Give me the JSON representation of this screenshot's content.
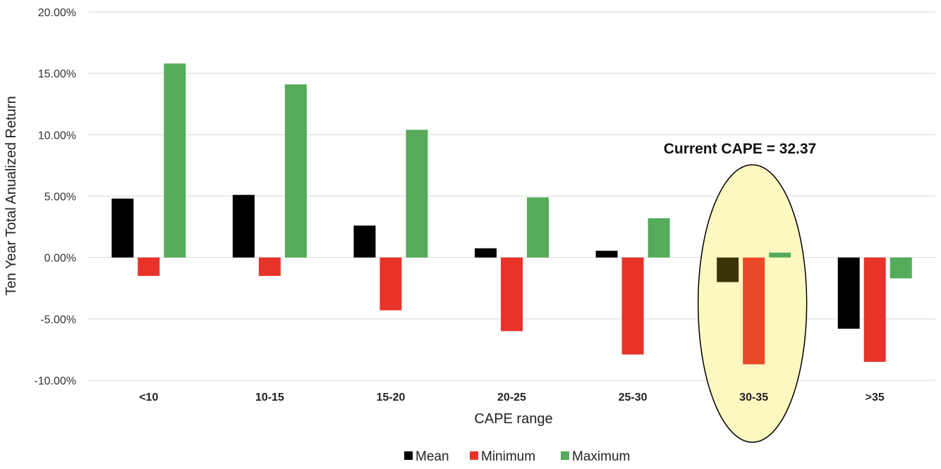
{
  "chart_data": {
    "type": "bar",
    "categories": [
      "<10",
      "10-15",
      "15-20",
      "20-25",
      "25-30",
      "30-35",
      ">35"
    ],
    "series": [
      {
        "name": "Mean",
        "color": "#000000",
        "values": [
          0.048,
          0.051,
          0.026,
          0.0075,
          0.0055,
          -0.02,
          -0.058
        ]
      },
      {
        "name": "Minimum",
        "color": "#e8332a",
        "values": [
          -0.015,
          -0.015,
          -0.043,
          -0.06,
          -0.079,
          -0.087,
          -0.085
        ]
      },
      {
        "name": "Maximum",
        "color": "#55ab5a",
        "values": [
          0.158,
          0.141,
          0.104,
          0.049,
          0.032,
          0.004,
          -0.017
        ]
      }
    ],
    "highlight": {
      "category": "30-35",
      "fill": "#fcf8c0",
      "series_colors": [
        "#3a3508",
        "#ea4a2a",
        "#55ab5a"
      ]
    },
    "xlabel": "CAPE range",
    "ylabel": "Ten Year Total Anualized Return",
    "ylim": [
      -0.1,
      0.2
    ],
    "yticks": [
      0.2,
      0.15,
      0.1,
      0.05,
      0.0,
      -0.05,
      -0.1
    ],
    "ytick_labels": [
      "20.00%",
      "15.00%",
      "10.00%",
      "5.00%",
      "0.00%",
      "-5.00%",
      "-10.00%"
    ],
    "annotation": "Current CAPE = 32.37",
    "grid": true,
    "legend_position": "bottom"
  }
}
